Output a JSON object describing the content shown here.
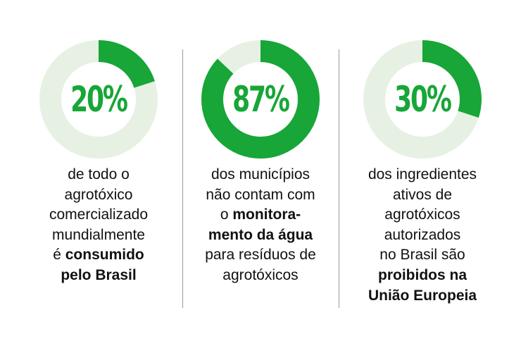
{
  "colors": {
    "accent": "#17a637",
    "track": "#e6f1e3",
    "text": "#111111",
    "divider": "#9a9a9a"
  },
  "chart_data": [
    {
      "type": "pie",
      "value": 20,
      "label": "20%",
      "lines": [
        {
          "text": "de todo o"
        },
        {
          "text": "agrotóxico"
        },
        {
          "text": "comercializado"
        },
        {
          "text": "mundialmente"
        },
        {
          "text": "é ",
          "bold": "consumido"
        },
        {
          "text": "",
          "bold": "pelo Brasil"
        }
      ]
    },
    {
      "type": "pie",
      "value": 87,
      "label": "87%",
      "lines": [
        {
          "text": "dos municípios"
        },
        {
          "text": "não contam com"
        },
        {
          "text": "o ",
          "bold": "monitora-"
        },
        {
          "text": "",
          "bold": "mento da água"
        },
        {
          "text": "para resíduos de"
        },
        {
          "text": "agrotóxicos"
        }
      ]
    },
    {
      "type": "pie",
      "value": 30,
      "label": "30%",
      "lines": [
        {
          "text": "dos ingredientes"
        },
        {
          "text": "ativos de"
        },
        {
          "text": "agrotóxicos"
        },
        {
          "text": "autorizados"
        },
        {
          "text": "no Brasil são"
        },
        {
          "text": "",
          "bold": "proibidos na"
        },
        {
          "text": "",
          "bold": "União Europeia"
        }
      ]
    }
  ]
}
